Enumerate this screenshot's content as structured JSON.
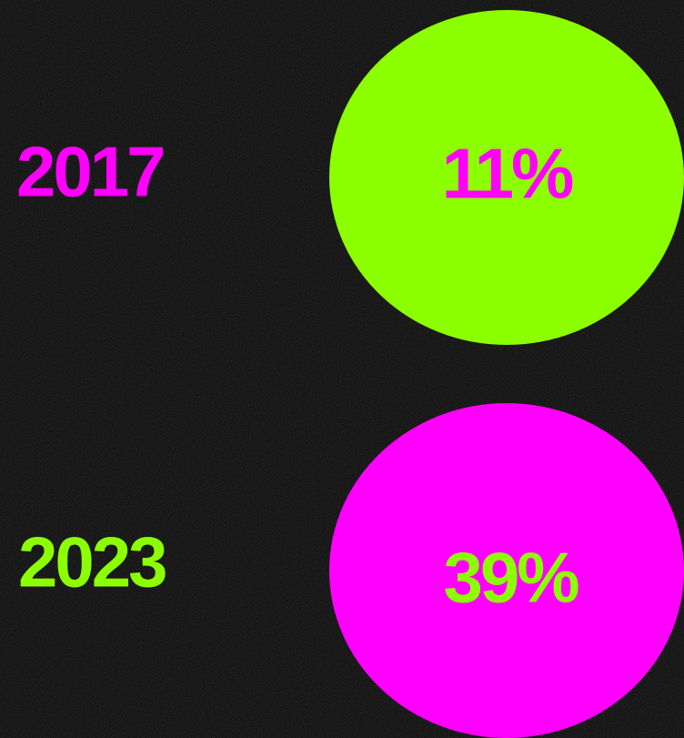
{
  "items": [
    {
      "year": "2017",
      "percent": "11%"
    },
    {
      "year": "2023",
      "percent": "39%"
    }
  ]
}
